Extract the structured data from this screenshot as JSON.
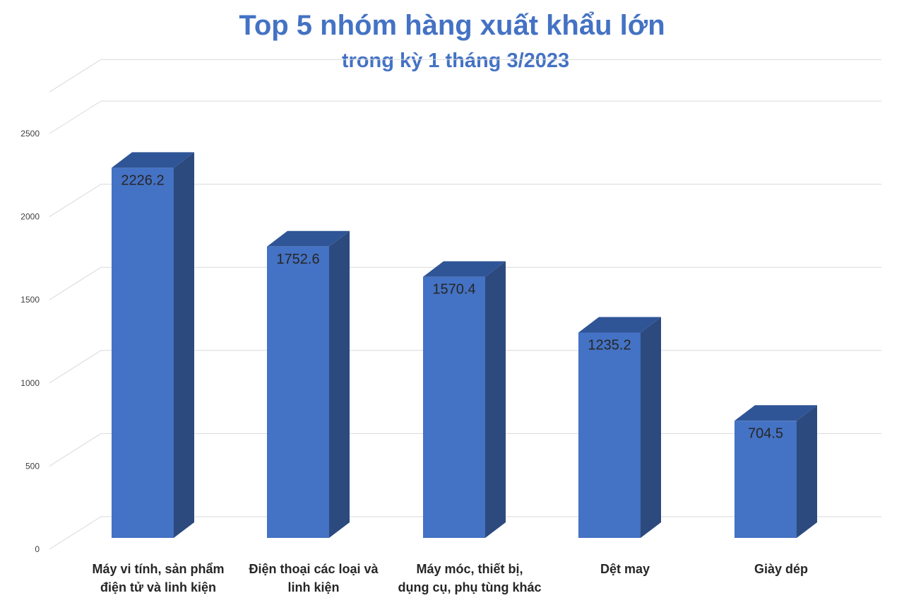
{
  "title": "Top 5 nhóm hàng xuất khẩu lớn",
  "subtitle": "trong kỳ 1 tháng 3/2023",
  "chart_data": {
    "type": "bar",
    "style": "3d-column",
    "title": "Top 5 nhóm hàng xuất khẩu lớn",
    "subtitle": "trong kỳ 1 tháng 3/2023",
    "categories": [
      [
        "Máy vi tính, sản phẩm",
        "điện tử và linh kiện"
      ],
      [
        "Điện thoại các loại và",
        "linh kiện"
      ],
      [
        "Máy móc, thiết bị,",
        "dụng cụ, phụ tùng khác"
      ],
      [
        "Dệt may"
      ],
      [
        "Giày dép"
      ]
    ],
    "values": [
      2226.2,
      1752.6,
      1570.4,
      1235.2,
      704.5
    ],
    "data_labels": [
      "2226.2",
      "1752.6",
      "1570.4",
      "1235.2",
      "704.5"
    ],
    "y_ticks": [
      0,
      500,
      1000,
      1500,
      2000,
      2500
    ],
    "y_tick_labels": [
      "0",
      "500",
      "1000",
      "1500",
      "2000",
      "2500"
    ],
    "ylim": [
      0,
      2750
    ],
    "xlabel": "",
    "ylabel": "",
    "grid": true,
    "legend": "none",
    "colors": {
      "bar_front": "#4472C4",
      "bar_side": "#2C4A7E",
      "bar_top": "#2F5597",
      "title": "#4472C4",
      "grid": "#D9D9D9"
    }
  }
}
